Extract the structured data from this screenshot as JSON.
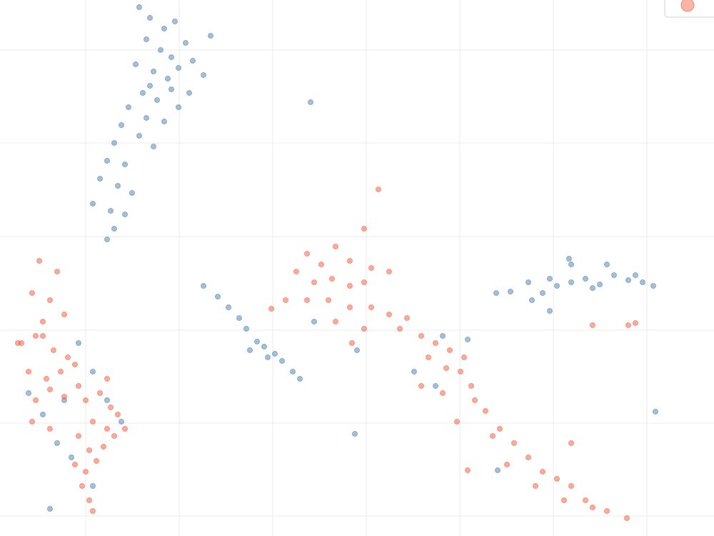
{
  "chart_data": {
    "type": "scatter",
    "xlim": [
      0,
      1000
    ],
    "ylim": [
      0,
      750
    ],
    "xticks": [
      120,
      251,
      382,
      513,
      644,
      775,
      906
    ],
    "yticks": [
      28,
      158,
      288,
      419,
      550,
      680
    ],
    "grid": true,
    "legend": "top-right",
    "series": [
      {
        "color": "#4a7fb0",
        "x": [
          195,
          210,
          230,
          245,
          205,
          225,
          240,
          260,
          190,
          215,
          235,
          250,
          270,
          285,
          200,
          220,
          240,
          180,
          205,
          230,
          195,
          215,
          250,
          170,
          160,
          150,
          175,
          140,
          165,
          185,
          130,
          155,
          175,
          160,
          150,
          295,
          265,
          210,
          435,
          497,
          918,
          697,
          70,
          285,
          305,
          320,
          335,
          345,
          360,
          370,
          385,
          395,
          410,
          420,
          350,
          375,
          695,
          715,
          740,
          760,
          780,
          800,
          820,
          840,
          860,
          880,
          900,
          915,
          850,
          800,
          770,
          745,
          770,
          830,
          890,
          797,
          40,
          60,
          90,
          110,
          130,
          100,
          80,
          150,
          170,
          130,
          620,
          655,
          610,
          580,
          500,
          440
        ],
        "values": [
          740,
          725,
          710,
          720,
          695,
          680,
          670,
          690,
          660,
          650,
          640,
          655,
          665,
          645,
          620,
          610,
          625,
          600,
          585,
          580,
          560,
          545,
          600,
          575,
          550,
          525,
          520,
          500,
          490,
          480,
          465,
          455,
          450,
          430,
          415,
          700,
          620,
          630,
          607,
          143,
          174,
          92,
          38,
          350,
          335,
          320,
          305,
          290,
          272,
          265,
          255,
          245,
          230,
          220,
          260,
          250,
          340,
          342,
          355,
          340,
          350,
          355,
          360,
          352,
          365,
          358,
          355,
          350,
          380,
          380,
          360,
          330,
          315,
          347,
          365,
          388,
          200,
          170,
          190,
          270,
          230,
          110,
          130,
          190,
          160,
          70,
          280,
          275,
          210,
          230,
          260,
          300
        ]
      },
      {
        "color": "#f45a3c",
        "x": [
          55,
          80,
          45,
          70,
          90,
          60,
          30,
          50,
          75,
          95,
          40,
          65,
          85,
          105,
          50,
          70,
          90,
          110,
          45,
          70,
          120,
          140,
          155,
          130,
          150,
          165,
          110,
          125,
          145,
          160,
          105,
          120,
          135,
          115,
          125,
          130,
          175,
          150,
          25,
          60,
          530,
          510,
          470,
          430,
          450,
          490,
          520,
          545,
          415,
          440,
          465,
          490,
          510,
          400,
          430,
          460,
          490,
          520,
          545,
          570,
          380,
          470,
          510,
          560,
          590,
          610,
          630,
          650,
          600,
          625,
          645,
          660,
          590,
          620,
          665,
          680,
          640,
          700,
          690,
          720,
          710,
          740,
          760,
          780,
          800,
          750,
          790,
          820,
          830,
          850,
          878,
          800,
          655,
          880,
          890,
          830,
          493
        ],
        "values": [
          385,
          370,
          340,
          330,
          310,
          300,
          270,
          280,
          260,
          250,
          230,
          220,
          230,
          240,
          190,
          205,
          195,
          210,
          160,
          150,
          190,
          200,
          180,
          160,
          150,
          170,
          140,
          120,
          125,
          140,
          100,
          90,
          105,
          70,
          50,
          35,
          150,
          220,
          270,
          280,
          485,
          430,
          405,
          395,
          380,
          385,
          375,
          370,
          370,
          355,
          360,
          350,
          355,
          330,
          330,
          330,
          320,
          320,
          310,
          305,
          318,
          300,
          290,
          290,
          280,
          270,
          260,
          250,
          250,
          235,
          230,
          210,
          210,
          200,
          190,
          175,
          160,
          150,
          140,
          130,
          100,
          110,
          90,
          80,
          70,
          70,
          50,
          50,
          40,
          35,
          25,
          130,
          92,
          295,
          298,
          295,
          270
        ]
      }
    ]
  }
}
